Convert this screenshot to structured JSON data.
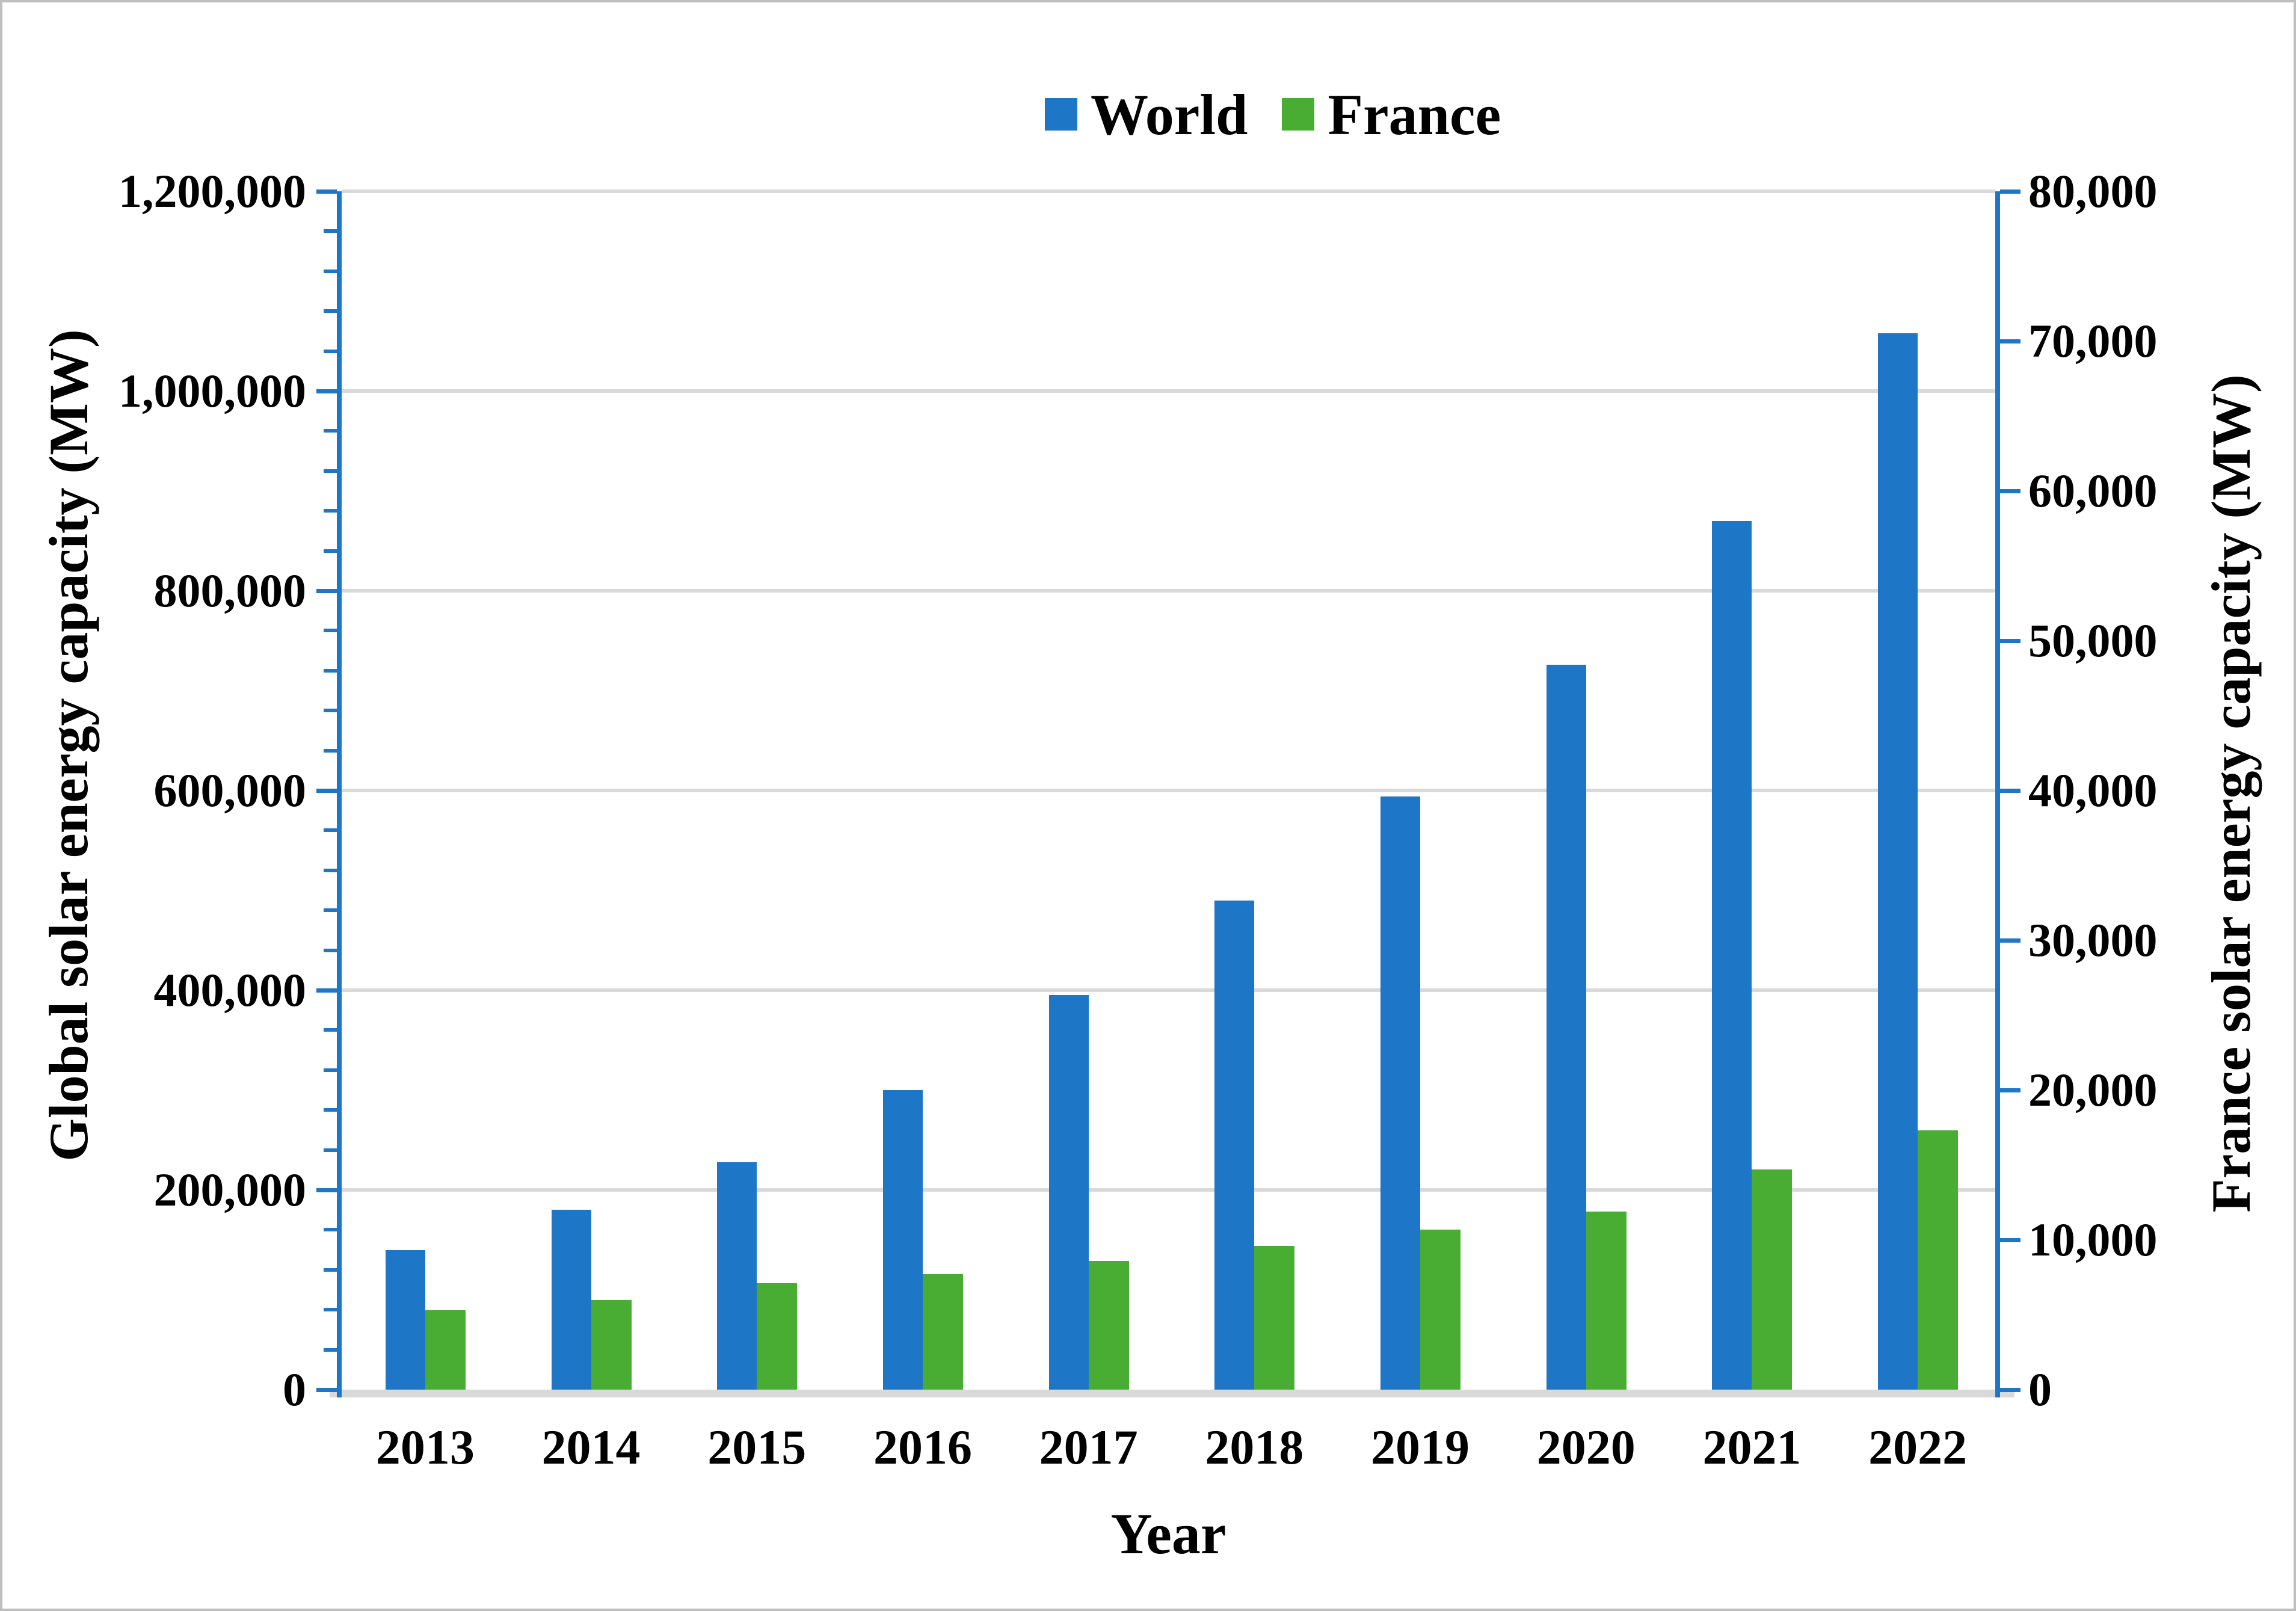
{
  "figure": {
    "background_color": "#ffffff",
    "border_color": "#bfbfbf",
    "gridline_color": "#d9d9d9",
    "axis_line_color": "#1d76c6",
    "text_color": "#000000"
  },
  "legend": [
    {
      "label": "World",
      "color": "#1d76c6",
      "swatch": "blue-square"
    },
    {
      "label": "France",
      "color": "#49ad33",
      "swatch": "green-square"
    }
  ],
  "chart_data": {
    "type": "bar",
    "title": "",
    "categories": [
      "2013",
      "2014",
      "2015",
      "2016",
      "2017",
      "2018",
      "2019",
      "2020",
      "2021",
      "2022"
    ],
    "series": [
      {
        "name": "World",
        "axis": "left",
        "color": "#1d76c6",
        "values": [
          140000,
          180000,
          228000,
          300000,
          395000,
          490000,
          594000,
          726000,
          870000,
          1058000
        ]
      },
      {
        "name": "France",
        "axis": "right",
        "color": "#49ad33",
        "values": [
          5300,
          6000,
          7100,
          7700,
          8600,
          9600,
          10700,
          11900,
          14700,
          17300
        ]
      }
    ],
    "left_axis": {
      "label": "Global solar energy capacity (MW)",
      "min": 0,
      "max": 1200000,
      "major_step": 200000,
      "minor_step": 40000,
      "tick_labels": [
        "0",
        "200,000",
        "400,000",
        "600,000",
        "800,000",
        "1,000,000",
        "1,200,000"
      ]
    },
    "right_axis": {
      "label": "France solar energy capacity (MW)",
      "min": 0,
      "max": 80000,
      "major_step": 10000,
      "tick_labels": [
        "0",
        "10,000",
        "20,000",
        "30,000",
        "40,000",
        "50,000",
        "60,000",
        "70,000",
        "80,000"
      ]
    },
    "x_axis": {
      "label": "Year"
    },
    "grid": true,
    "legend_position": "top-center"
  }
}
